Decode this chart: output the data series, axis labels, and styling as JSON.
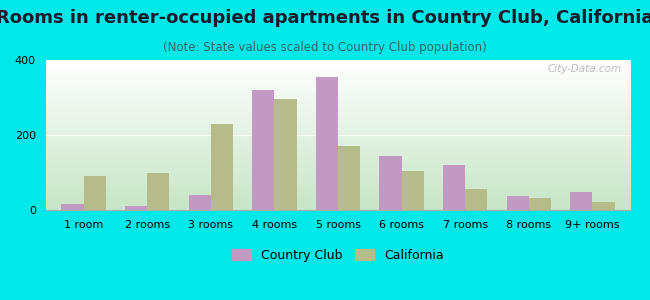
{
  "title": "Rooms in renter-occupied apartments in Country Club, California",
  "subtitle": "(Note: State values scaled to Country Club population)",
  "categories": [
    "1 room",
    "2 rooms",
    "3 rooms",
    "4 rooms",
    "5 rooms",
    "6 rooms",
    "7 rooms",
    "8 rooms",
    "9+ rooms"
  ],
  "country_club": [
    15,
    12,
    40,
    320,
    355,
    145,
    120,
    38,
    48
  ],
  "california": [
    90,
    100,
    230,
    295,
    170,
    105,
    55,
    32,
    22
  ],
  "cc_color": "#c299c2",
  "ca_color": "#b5bc8a",
  "background_outer": "#00e8e8",
  "ylim": [
    0,
    400
  ],
  "yticks": [
    0,
    200,
    400
  ],
  "bar_width": 0.35,
  "title_fontsize": 13,
  "subtitle_fontsize": 8.5,
  "tick_fontsize": 8,
  "legend_fontsize": 9,
  "title_color": "#1a1a2e",
  "subtitle_color": "#336666",
  "watermark": "City-Data.com"
}
